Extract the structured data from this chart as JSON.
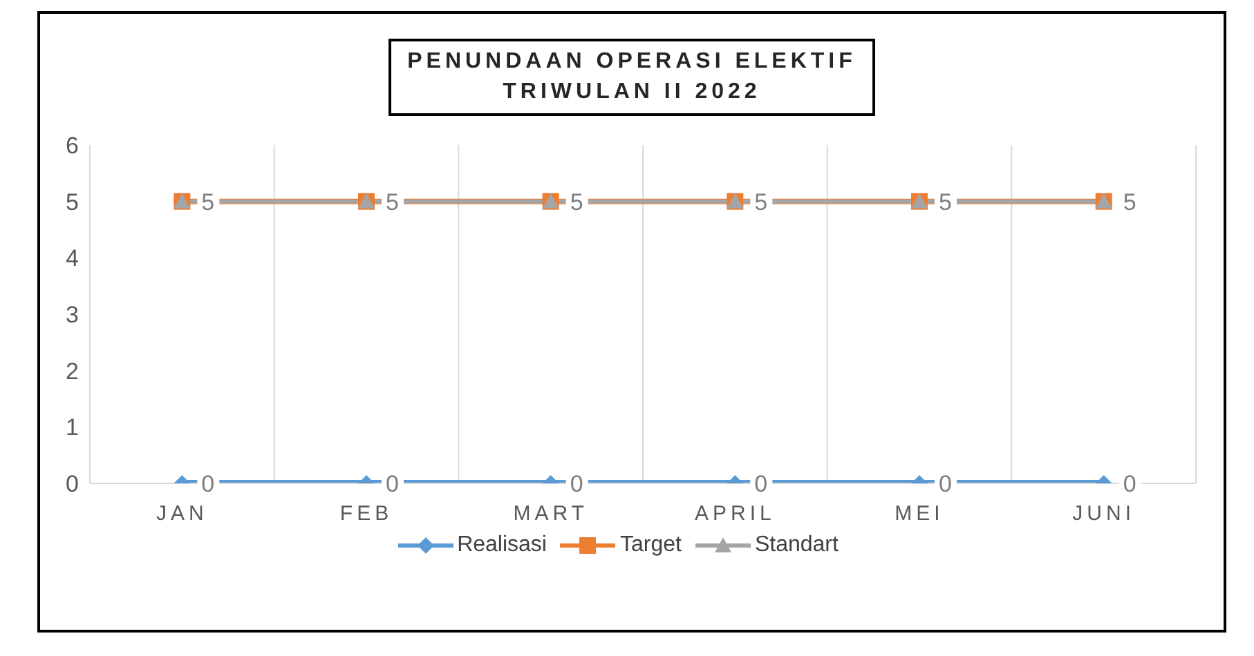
{
  "chart_data": {
    "type": "line",
    "title": "PENUNDAAN OPERASI ELEKTIF\nTRIWULAN II 2022",
    "categories": [
      "JAN",
      "FEB",
      "MART",
      "APRIL",
      "MEI",
      "JUNI"
    ],
    "series": [
      {
        "name": "Realisasi",
        "color": "#5b9bd5",
        "marker": "diamond",
        "values": [
          0,
          0,
          0,
          0,
          0,
          0
        ],
        "value_labels": [
          "0",
          "0",
          "0",
          "0",
          "0",
          "0"
        ]
      },
      {
        "name": "Target",
        "color": "#ed7d31",
        "marker": "square",
        "values": [
          5,
          5,
          5,
          5,
          5,
          5
        ],
        "value_labels": [
          null,
          null,
          null,
          null,
          null,
          null
        ]
      },
      {
        "name": "Standart",
        "color": "#a5a5a5",
        "marker": "triangle",
        "values": [
          5,
          5,
          5,
          5,
          5,
          5
        ],
        "value_labels": [
          "5",
          "5",
          "5",
          "5",
          "5",
          "5"
        ]
      }
    ],
    "ylim": [
      0,
      6
    ],
    "yticks": [
      0,
      1,
      2,
      3,
      4,
      5,
      6
    ],
    "grid": "x",
    "legend": "bottom"
  }
}
